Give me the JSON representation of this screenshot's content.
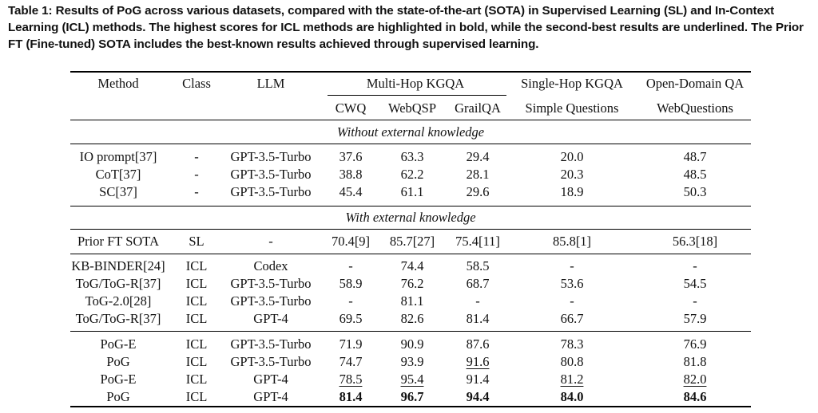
{
  "caption": "Table 1: Results of PoG across various datasets, compared with the state-of-the-art (SOTA) in Supervised Learning (SL) and In-Context Learning (ICL) methods. The highest scores for ICL methods are highlighted in bold, while the second-best results are underlined. The Prior FT (Fine-tuned) SOTA includes the best-known results achieved through supervised learning.",
  "header": {
    "method": "Method",
    "class": "Class",
    "llm": "LLM",
    "multihop": "Multi-Hop KGQA",
    "singlehop": "Single-Hop KGQA",
    "opendomain": "Open-Domain QA",
    "cwq": "CWQ",
    "webqsp": "WebQSP",
    "grailqa": "GrailQA",
    "simple": "Simple Questions",
    "webquestions": "WebQuestions"
  },
  "sections": {
    "without": "Without external knowledge",
    "with": "With external knowledge"
  },
  "rows": [
    {
      "method": "IO prompt[37]",
      "class": "-",
      "llm": "GPT-3.5-Turbo",
      "cwq": "37.6",
      "webqsp": "63.3",
      "grailqa": "29.4",
      "simple": "20.0",
      "webq": "48.7"
    },
    {
      "method": "CoT[37]",
      "class": "-",
      "llm": "GPT-3.5-Turbo",
      "cwq": "38.8",
      "webqsp": "62.2",
      "grailqa": "28.1",
      "simple": "20.3",
      "webq": "48.5"
    },
    {
      "method": "SC[37]",
      "class": "-",
      "llm": "GPT-3.5-Turbo",
      "cwq": "45.4",
      "webqsp": "61.1",
      "grailqa": "29.6",
      "simple": "18.9",
      "webq": "50.3"
    },
    {
      "method": "Prior FT SOTA",
      "class": "SL",
      "llm": "-",
      "cwq": "70.4[9]",
      "webqsp": "85.7[27]",
      "grailqa": "75.4[11]",
      "simple": "85.8[1]",
      "webq": "56.3[18]"
    },
    {
      "method": "KB-BINDER[24]",
      "class": "ICL",
      "llm": "Codex",
      "cwq": "-",
      "webqsp": "74.4",
      "grailqa": "58.5",
      "simple": "-",
      "webq": "-"
    },
    {
      "method": "ToG/ToG-R[37]",
      "class": "ICL",
      "llm": "GPT-3.5-Turbo",
      "cwq": "58.9",
      "webqsp": "76.2",
      "grailqa": "68.7",
      "simple": "53.6",
      "webq": "54.5"
    },
    {
      "method": "ToG-2.0[28]",
      "class": "ICL",
      "llm": "GPT-3.5-Turbo",
      "cwq": "-",
      "webqsp": "81.1",
      "grailqa": "-",
      "simple": "-",
      "webq": "-"
    },
    {
      "method": "ToG/ToG-R[37]",
      "class": "ICL",
      "llm": "GPT-4",
      "cwq": "69.5",
      "webqsp": "82.6",
      "grailqa": "81.4",
      "simple": "66.7",
      "webq": "57.9"
    },
    {
      "method": "PoG-E",
      "class": "ICL",
      "llm": "GPT-3.5-Turbo",
      "cwq": "71.9",
      "webqsp": "90.9",
      "grailqa": "87.6",
      "simple": "78.3",
      "webq": "76.9"
    },
    {
      "method": "PoG",
      "class": "ICL",
      "llm": "GPT-3.5-Turbo",
      "cwq": "74.7",
      "webqsp": "93.9",
      "grailqa": "91.6",
      "simple": "80.8",
      "webq": "81.8"
    },
    {
      "method": "PoG-E",
      "class": "ICL",
      "llm": "GPT-4",
      "cwq": "78.5",
      "webqsp": "95.4",
      "grailqa": "91.4",
      "simple": "81.2",
      "webq": "82.0"
    },
    {
      "method": "PoG",
      "class": "ICL",
      "llm": "GPT-4",
      "cwq": "81.4",
      "webqsp": "96.7",
      "grailqa": "94.4",
      "simple": "84.0",
      "webq": "84.6"
    }
  ]
}
